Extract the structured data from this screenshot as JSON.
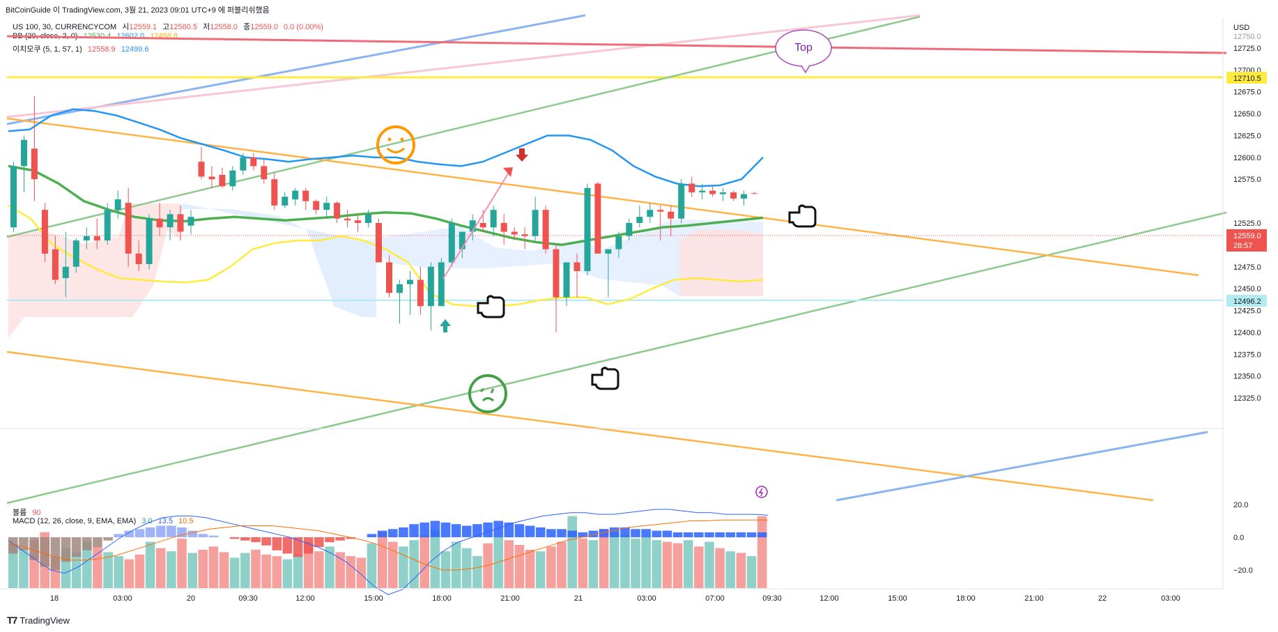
{
  "header": {
    "title": "BitCoinGuide 이 TradingView.com, 3월 21, 2023 09:01 UTC+9 에 퍼블리쉬했음"
  },
  "legend": {
    "symbol": "US 100, 30, CURRENCYCOM",
    "o_label": "시",
    "o_value": "12559.1",
    "h_label": "고",
    "h_value": "12560.5",
    "l_label": "저",
    "l_value": "12558.0",
    "c_label": "종",
    "c_value": "12559.0",
    "change": "0.0 (0.00%)",
    "bb_label": "BB (20, close, 2, 0)",
    "bb_basis": "12530.4",
    "bb_upper": "12602.0",
    "bb_lower": "12458.8",
    "ichimoku_label": "이치모쿠 (5, 1, 57, 1)",
    "ichimoku_a": "12558.9",
    "ichimoku_b": "12499.6",
    "volume_label": "볼륨",
    "volume_value": "90",
    "macd_label": "MACD (12, 26, close, 9, EMA, EMA)",
    "macd_hist": "3.0",
    "macd_line": "13.5",
    "macd_signal": "10.5"
  },
  "price_axis": {
    "currency": "USD",
    "top_label": "12750.0",
    "ticks": [
      "12725.0",
      "12700.0",
      "12675.0",
      "12650.0",
      "12625.0",
      "12600.0",
      "12575.0",
      "12525.0",
      "12475.0",
      "12450.0",
      "12425.0",
      "12400.0",
      "12375.0",
      "12350.0",
      "12325.0"
    ],
    "tag_yellow": "12710.5",
    "tag_price": "12559.0",
    "tag_countdown": "28:57",
    "tag_teal": "12496.2"
  },
  "macd_axis": [
    "20.0",
    "0.0",
    "−20.0"
  ],
  "time_axis": [
    "18",
    "03:00",
    "20",
    "09:30",
    "12:00",
    "15:00",
    "18:00",
    "21:00",
    "21",
    "03:00",
    "07:00",
    "09:30",
    "12:00",
    "15:00",
    "18:00",
    "21:00",
    "22",
    "03:00"
  ],
  "annotations": {
    "top_label": "Top"
  },
  "footer": {
    "brand": "TradingView"
  },
  "colors": {
    "up": "#26a69a",
    "down": "#ef5350",
    "bb_upper": "#2196f3",
    "bb_basis": "#4caf50",
    "conversion": "#ffeb3b",
    "orange": "#ffa726",
    "green_line": "#81c784",
    "red_line": "#ef5b6b"
  },
  "chart_data": {
    "type": "candlestick",
    "title": "US 100, 30, CURRENCYCOM",
    "ylim": [
      12290,
      12760
    ],
    "candles": [
      {
        "o": 12520,
        "h": 12595,
        "l": 12515,
        "c": 12590
      },
      {
        "o": 12590,
        "h": 12625,
        "l": 12560,
        "c": 12620
      },
      {
        "o": 12610,
        "h": 12670,
        "l": 12550,
        "c": 12575
      },
      {
        "o": 12540,
        "h": 12548,
        "l": 12480,
        "c": 12490
      },
      {
        "o": 12495,
        "h": 12510,
        "l": 12455,
        "c": 12460
      },
      {
        "o": 12462,
        "h": 12515,
        "l": 12440,
        "c": 12475
      },
      {
        "o": 12475,
        "h": 12508,
        "l": 12468,
        "c": 12505
      },
      {
        "o": 12505,
        "h": 12520,
        "l": 12495,
        "c": 12510
      },
      {
        "o": 12510,
        "h": 12530,
        "l": 12495,
        "c": 12505
      },
      {
        "o": 12505,
        "h": 12548,
        "l": 12500,
        "c": 12540
      },
      {
        "o": 12540,
        "h": 12562,
        "l": 12530,
        "c": 12552
      },
      {
        "o": 12548,
        "h": 12565,
        "l": 12475,
        "c": 12490
      },
      {
        "o": 12490,
        "h": 12505,
        "l": 12470,
        "c": 12478
      },
      {
        "o": 12478,
        "h": 12535,
        "l": 12472,
        "c": 12530
      },
      {
        "o": 12530,
        "h": 12548,
        "l": 12510,
        "c": 12520
      },
      {
        "o": 12520,
        "h": 12540,
        "l": 12505,
        "c": 12535
      },
      {
        "o": 12535,
        "h": 12545,
        "l": 12505,
        "c": 12515
      },
      {
        "o": 12522,
        "h": 12540,
        "l": 12512,
        "c": 12532
      },
      {
        "o": 12595,
        "h": 12612,
        "l": 12575,
        "c": 12578
      },
      {
        "o": 12578,
        "h": 12590,
        "l": 12565,
        "c": 12575
      },
      {
        "o": 12580,
        "h": 12588,
        "l": 12565,
        "c": 12567
      },
      {
        "o": 12567,
        "h": 12590,
        "l": 12562,
        "c": 12585
      },
      {
        "o": 12585,
        "h": 12605,
        "l": 12580,
        "c": 12600
      },
      {
        "o": 12600,
        "h": 12605,
        "l": 12585,
        "c": 12590
      },
      {
        "o": 12590,
        "h": 12598,
        "l": 12570,
        "c": 12575
      },
      {
        "o": 12575,
        "h": 12582,
        "l": 12540,
        "c": 12545
      },
      {
        "o": 12545,
        "h": 12560,
        "l": 12542,
        "c": 12555
      },
      {
        "o": 12552,
        "h": 12565,
        "l": 12545,
        "c": 12562
      },
      {
        "o": 12562,
        "h": 12565,
        "l": 12540,
        "c": 12550
      },
      {
        "o": 12550,
        "h": 12552,
        "l": 12535,
        "c": 12540
      },
      {
        "o": 12540,
        "h": 12555,
        "l": 12530,
        "c": 12548
      },
      {
        "o": 12548,
        "h": 12550,
        "l": 12525,
        "c": 12530
      },
      {
        "o": 12530,
        "h": 12540,
        "l": 12520,
        "c": 12528
      },
      {
        "o": 12528,
        "h": 12535,
        "l": 12515,
        "c": 12525
      },
      {
        "o": 12525,
        "h": 12540,
        "l": 12520,
        "c": 12535
      },
      {
        "o": 12525,
        "h": 12530,
        "l": 12480,
        "c": 12480
      },
      {
        "o": 12480,
        "h": 12488,
        "l": 12440,
        "c": 12445
      },
      {
        "o": 12445,
        "h": 12460,
        "l": 12410,
        "c": 12455
      },
      {
        "o": 12455,
        "h": 12470,
        "l": 12420,
        "c": 12460
      },
      {
        "o": 12460,
        "h": 12475,
        "l": 12420,
        "c": 12430
      },
      {
        "o": 12430,
        "h": 12480,
        "l": 12402,
        "c": 12475
      },
      {
        "o": 12430,
        "h": 12485,
        "l": 12430,
        "c": 12480
      },
      {
        "o": 12480,
        "h": 12530,
        "l": 12475,
        "c": 12525
      },
      {
        "o": 12495,
        "h": 12515,
        "l": 12485,
        "c": 12515
      },
      {
        "o": 12515,
        "h": 12535,
        "l": 12505,
        "c": 12528
      },
      {
        "o": 12525,
        "h": 12540,
        "l": 12515,
        "c": 12520
      },
      {
        "o": 12520,
        "h": 12545,
        "l": 12510,
        "c": 12540
      },
      {
        "o": 12525,
        "h": 12535,
        "l": 12500,
        "c": 12515
      },
      {
        "o": 12515,
        "h": 12520,
        "l": 12505,
        "c": 12512
      },
      {
        "o": 12512,
        "h": 12520,
        "l": 12495,
        "c": 12510
      },
      {
        "o": 12510,
        "h": 12555,
        "l": 12505,
        "c": 12540
      },
      {
        "o": 12540,
        "h": 12545,
        "l": 12490,
        "c": 12495
      },
      {
        "o": 12495,
        "h": 12500,
        "l": 12400,
        "c": 12440
      },
      {
        "o": 12440,
        "h": 12480,
        "l": 12430,
        "c": 12480
      },
      {
        "o": 12480,
        "h": 12490,
        "l": 12440,
        "c": 12470
      },
      {
        "o": 12470,
        "h": 12570,
        "l": 12465,
        "c": 12565
      },
      {
        "o": 12570,
        "h": 12572,
        "l": 12490,
        "c": 12490
      },
      {
        "o": 12490,
        "h": 12495,
        "l": 12440,
        "c": 12495
      },
      {
        "o": 12495,
        "h": 12515,
        "l": 12485,
        "c": 12510
      },
      {
        "o": 12510,
        "h": 12530,
        "l": 12505,
        "c": 12525
      },
      {
        "o": 12525,
        "h": 12545,
        "l": 12520,
        "c": 12532
      },
      {
        "o": 12532,
        "h": 12548,
        "l": 12525,
        "c": 12540
      },
      {
        "o": 12540,
        "h": 12545,
        "l": 12505,
        "c": 12538
      },
      {
        "o": 12538,
        "h": 12545,
        "l": 12510,
        "c": 12530
      },
      {
        "o": 12530,
        "h": 12575,
        "l": 12525,
        "c": 12570
      },
      {
        "o": 12570,
        "h": 12578,
        "l": 12555,
        "c": 12560
      },
      {
        "o": 12560,
        "h": 12570,
        "l": 12552,
        "c": 12562
      },
      {
        "o": 12562,
        "h": 12568,
        "l": 12555,
        "c": 12558
      },
      {
        "o": 12558,
        "h": 12565,
        "l": 12550,
        "c": 12560
      },
      {
        "o": 12560,
        "h": 12562,
        "l": 12550,
        "c": 12553
      },
      {
        "o": 12553,
        "h": 12562,
        "l": 12545,
        "c": 12558
      },
      {
        "o": 12559.1,
        "h": 12560.5,
        "l": 12558,
        "c": 12559
      }
    ],
    "bb_upper": [
      12630,
      12632,
      12648,
      12655,
      12653,
      12648,
      12640,
      12632,
      12622,
      12615,
      12608,
      12600,
      12598,
      12595,
      12598,
      12600,
      12602,
      12600,
      12600,
      12595,
      12592,
      12590,
      12595,
      12605,
      12615,
      12625,
      12625,
      12620,
      12608,
      12590,
      12578,
      12570,
      12567,
      12568,
      12575,
      12600
    ],
    "bb_basis": [
      12590,
      12585,
      12570,
      12550,
      12540,
      12532,
      12528,
      12527,
      12530,
      12532,
      12530,
      12528,
      12530,
      12532,
      12535,
      12537,
      12536,
      12530,
      12522,
      12515,
      12508,
      12503,
      12500,
      12505,
      12510,
      12515,
      12520,
      12522,
      12525,
      12528,
      12531
    ],
    "conversion": [
      12545,
      12530,
      12500,
      12485,
      12472,
      12462,
      12460,
      12458,
      12457,
      12460,
      12475,
      12495,
      12502,
      12505,
      12505,
      12510,
      12505,
      12495,
      12480,
      12445,
      12432,
      12430,
      12430,
      12432,
      12437,
      12440,
      12440,
      12432,
      12438,
      12450,
      12460,
      12462,
      12460,
      12458,
      12460
    ],
    "series_volume": [
      55,
      48,
      60,
      70,
      40,
      50,
      45,
      58,
      52,
      45,
      40,
      36,
      42,
      58,
      50,
      46,
      62,
      44,
      48,
      52,
      45,
      38,
      44,
      48,
      42,
      40,
      36,
      42,
      58,
      46,
      52,
      45,
      40,
      38,
      56,
      70,
      58,
      52,
      60,
      66,
      72,
      46,
      58,
      50,
      40,
      56,
      64,
      60,
      54,
      48,
      46,
      52,
      58,
      90,
      62,
      60,
      74,
      70,
      66,
      62,
      64,
      60,
      58,
      56,
      60,
      52,
      58,
      50,
      46,
      44,
      40,
      90
    ],
    "macd_hist": [
      -10,
      -8,
      -14,
      -18,
      -20,
      -15,
      -12,
      -8,
      -6,
      -2,
      2,
      4,
      5,
      6,
      7,
      7,
      6,
      4,
      2,
      1,
      0,
      -1,
      -2,
      -3,
      -5,
      -8,
      -10,
      -12,
      -10,
      -6,
      -3,
      -2,
      -1,
      0,
      2,
      4,
      5,
      6,
      8,
      9,
      10,
      9,
      8,
      7,
      8,
      9,
      10,
      9,
      8,
      7,
      6,
      5,
      5,
      4,
      3,
      4,
      5,
      6,
      6,
      5,
      5,
      4,
      4,
      3,
      3,
      3,
      3,
      3,
      3,
      3,
      3,
      3
    ],
    "macd_line": [
      -2,
      -8,
      -14,
      -20,
      -22,
      -18,
      -12,
      -6,
      0,
      5,
      9,
      12,
      13,
      13,
      12,
      10,
      8,
      6,
      4,
      2,
      0,
      -3,
      -6,
      -10,
      -15,
      -22,
      -30,
      -35,
      -32,
      -24,
      -15,
      -8,
      -3,
      0,
      3,
      6,
      9,
      11,
      13,
      14,
      15,
      15,
      14,
      14,
      15,
      16,
      17,
      17,
      16,
      15,
      15,
      14,
      14,
      14,
      13.5
    ],
    "macd_signal": [
      -4,
      -6,
      -9,
      -12,
      -14,
      -14,
      -13,
      -11,
      -8,
      -5,
      -2,
      1,
      3,
      5,
      6,
      7,
      7,
      7,
      6,
      5,
      4,
      2,
      0,
      -2,
      -5,
      -9,
      -13,
      -17,
      -20,
      -20,
      -19,
      -17,
      -14,
      -11,
      -8,
      -5,
      -2,
      0,
      2,
      4,
      6,
      7,
      8,
      9,
      10,
      10,
      10.5,
      10.5,
      10.5,
      10.5
    ]
  }
}
